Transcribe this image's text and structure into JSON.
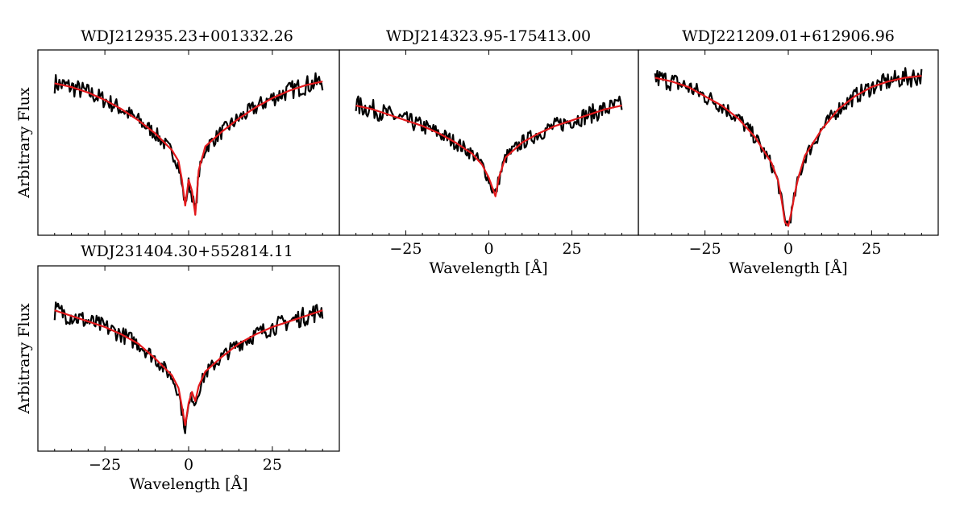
{
  "figure": {
    "ylabel": "Arbitrary Flux",
    "xlabel": "Wavelength [Å]",
    "colors": {
      "observed": "#000000",
      "model": "#e3191c"
    }
  },
  "chart_data": [
    {
      "type": "line",
      "title": "WDJ212935.23+001332.26",
      "xlabel": "",
      "ylabel": "Arbitrary Flux",
      "xlim": [
        -45,
        45
      ],
      "ylim": [
        0,
        1
      ],
      "xticks": [
        -25,
        0,
        25
      ],
      "xtick_labels_shown": false,
      "line_centers": [
        -0.8,
        1.8
      ],
      "line_depths": [
        0.52,
        0.7
      ],
      "grid": false,
      "series": [
        {
          "x": [
            -40,
            -35,
            -30,
            -25,
            -20,
            -15,
            -10,
            -5,
            -3,
            -2,
            -1,
            0,
            1,
            2,
            3,
            5,
            10,
            15,
            20,
            25,
            30,
            35,
            40
          ],
          "y": [
            0.82,
            0.8,
            0.77,
            0.73,
            0.68,
            0.62,
            0.55,
            0.45,
            0.38,
            0.27,
            0.17,
            0.28,
            0.22,
            0.12,
            0.33,
            0.47,
            0.56,
            0.63,
            0.69,
            0.74,
            0.78,
            0.81,
            0.83
          ]
        },
        {
          "x": [
            -40,
            -35,
            -30,
            -25,
            -20,
            -15,
            -10,
            -5,
            -3,
            -2,
            -1,
            0,
            1,
            2,
            3,
            5,
            10,
            15,
            20,
            25,
            30,
            35,
            40
          ],
          "y": [
            0.82,
            0.8,
            0.77,
            0.73,
            0.68,
            0.62,
            0.55,
            0.46,
            0.4,
            0.3,
            0.16,
            0.3,
            0.24,
            0.11,
            0.35,
            0.48,
            0.56,
            0.63,
            0.69,
            0.74,
            0.78,
            0.81,
            0.83
          ]
        }
      ]
    },
    {
      "type": "line",
      "title": "WDJ214323.95-175413.00",
      "xlabel": "Wavelength [Å]",
      "ylabel": "",
      "xlim": [
        -45,
        45
      ],
      "ylim": [
        0,
        1
      ],
      "xticks": [
        -25,
        0,
        25
      ],
      "xtick_labels": [
        "−25",
        "0",
        "25"
      ],
      "line_centers": [
        0.4,
        2.3
      ],
      "line_depths": [
        0.3,
        0.38
      ],
      "grid": false,
      "series": [
        {
          "x": [
            -40,
            -35,
            -30,
            -25,
            -20,
            -15,
            -10,
            -5,
            -2,
            0,
            1,
            2,
            3,
            5,
            10,
            15,
            20,
            25,
            30,
            35,
            40
          ],
          "y": [
            0.7,
            0.68,
            0.65,
            0.62,
            0.59,
            0.55,
            0.5,
            0.44,
            0.38,
            0.3,
            0.25,
            0.22,
            0.3,
            0.42,
            0.5,
            0.55,
            0.59,
            0.62,
            0.65,
            0.68,
            0.7
          ]
        },
        {
          "x": [
            -40,
            -35,
            -30,
            -25,
            -20,
            -15,
            -10,
            -5,
            -2,
            0,
            1,
            2,
            3,
            5,
            10,
            15,
            20,
            25,
            30,
            35,
            40
          ],
          "y": [
            0.7,
            0.68,
            0.65,
            0.62,
            0.59,
            0.55,
            0.5,
            0.44,
            0.38,
            0.31,
            0.26,
            0.21,
            0.31,
            0.42,
            0.5,
            0.55,
            0.59,
            0.62,
            0.65,
            0.68,
            0.7
          ]
        }
      ]
    },
    {
      "type": "line",
      "title": "WDJ221209.01+612906.96",
      "xlabel": "Wavelength [Å]",
      "ylabel": "",
      "xlim": [
        -45,
        45
      ],
      "ylim": [
        0,
        1
      ],
      "xticks": [
        -25,
        0,
        25
      ],
      "xtick_labels": [
        "−25",
        "0",
        "25"
      ],
      "line_centers": [
        -0.4,
        0.6
      ],
      "line_depths": [
        0.5,
        0.5
      ],
      "grid": false,
      "series": [
        {
          "x": [
            -40,
            -35,
            -30,
            -25,
            -20,
            -15,
            -10,
            -5,
            -3,
            -2,
            -1,
            0,
            1,
            2,
            3,
            5,
            10,
            15,
            20,
            25,
            30,
            35,
            40
          ],
          "y": [
            0.85,
            0.83,
            0.8,
            0.75,
            0.7,
            0.63,
            0.53,
            0.38,
            0.28,
            0.18,
            0.08,
            0.06,
            0.12,
            0.22,
            0.3,
            0.42,
            0.57,
            0.68,
            0.75,
            0.8,
            0.83,
            0.85,
            0.86
          ]
        },
        {
          "x": [
            -40,
            -35,
            -30,
            -25,
            -20,
            -15,
            -10,
            -5,
            -3,
            -2,
            -1,
            0,
            1,
            2,
            3,
            5,
            10,
            15,
            20,
            25,
            30,
            35,
            40
          ],
          "y": [
            0.85,
            0.83,
            0.8,
            0.75,
            0.7,
            0.63,
            0.53,
            0.39,
            0.29,
            0.19,
            0.07,
            0.05,
            0.13,
            0.23,
            0.31,
            0.43,
            0.57,
            0.68,
            0.75,
            0.8,
            0.83,
            0.85,
            0.86
          ]
        }
      ]
    },
    {
      "type": "line",
      "title": "WDJ231404.30+552814.11",
      "xlabel": "Wavelength [Å]",
      "ylabel": "Arbitrary Flux",
      "xlim": [
        -45,
        45
      ],
      "ylim": [
        0,
        1
      ],
      "xticks": [
        -25,
        0,
        25
      ],
      "xtick_labels": [
        "−25",
        "0",
        "25"
      ],
      "line_centers": [
        -1.4,
        1.2
      ],
      "line_depths": [
        0.6,
        0.3
      ],
      "grid": false,
      "series": [
        {
          "x": [
            -40,
            -35,
            -30,
            -25,
            -20,
            -15,
            -10,
            -5,
            -3,
            -2,
            -1,
            0,
            1,
            2,
            3,
            5,
            10,
            15,
            20,
            25,
            30,
            35,
            40
          ],
          "y": [
            0.76,
            0.73,
            0.7,
            0.67,
            0.63,
            0.58,
            0.5,
            0.4,
            0.32,
            0.22,
            0.12,
            0.24,
            0.3,
            0.26,
            0.33,
            0.42,
            0.51,
            0.58,
            0.63,
            0.67,
            0.7,
            0.73,
            0.76
          ]
        },
        {
          "x": [
            -40,
            -35,
            -30,
            -25,
            -20,
            -15,
            -10,
            -5,
            -3,
            -2,
            -1,
            0,
            1,
            2,
            3,
            5,
            10,
            15,
            20,
            25,
            30,
            35,
            40
          ],
          "y": [
            0.76,
            0.73,
            0.7,
            0.67,
            0.63,
            0.58,
            0.5,
            0.41,
            0.34,
            0.24,
            0.14,
            0.26,
            0.32,
            0.27,
            0.35,
            0.43,
            0.51,
            0.58,
            0.63,
            0.67,
            0.7,
            0.73,
            0.76
          ]
        }
      ]
    }
  ]
}
